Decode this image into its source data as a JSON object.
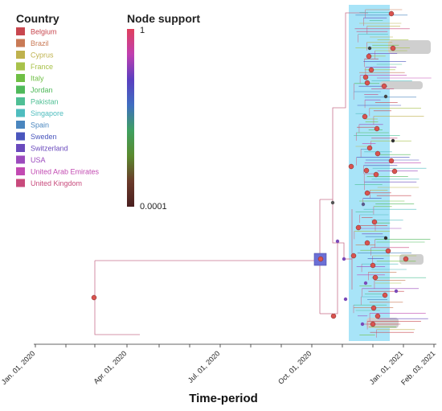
{
  "country_legend": {
    "title": "Country",
    "items": [
      {
        "label": "Belgium",
        "color": "#c8474f"
      },
      {
        "label": "Brazil",
        "color": "#c97a56"
      },
      {
        "label": "Cyprus",
        "color": "#bfb24e"
      },
      {
        "label": "France",
        "color": "#a8c24a"
      },
      {
        "label": "Italy",
        "color": "#6fbf45"
      },
      {
        "label": "Jordan",
        "color": "#4fb95a"
      },
      {
        "label": "Pakistan",
        "color": "#4fbf95"
      },
      {
        "label": "Singapore",
        "color": "#4fbdbf"
      },
      {
        "label": "Spain",
        "color": "#4a86bf"
      },
      {
        "label": "Sweden",
        "color": "#4a56bd"
      },
      {
        "label": "Switzerland",
        "color": "#6a4abd"
      },
      {
        "label": "USA",
        "color": "#9b4abd"
      },
      {
        "label": "United Arab Emirates",
        "color": "#c24ab2"
      },
      {
        "label": "United Kingdom",
        "color": "#c84a7c"
      }
    ]
  },
  "node_support": {
    "title": "Node support",
    "max_label": "1",
    "min_label": "0.0001",
    "gradient": [
      "#e0405c",
      "#c03fb0",
      "#5a3fc0",
      "#3f6ec0",
      "#3fa060",
      "#5a8a2e",
      "#6a3a2a",
      "#4a1f1f"
    ]
  },
  "x_axis": {
    "title": "Time-period",
    "ticks": [
      "Jan. 01, 2020",
      "Apr. 01, 2020",
      "Jul. 01, 2020",
      "Oct. 01, 2020",
      "Jan. 01, 2021",
      "Feb. 03, 2021"
    ]
  },
  "colors": {
    "highlight_band": "#a8e4f8",
    "clade_box": "#cfcfcf",
    "branch": "#c9738f",
    "node": "#d9534f",
    "root_square": "#6b6fd6"
  }
}
